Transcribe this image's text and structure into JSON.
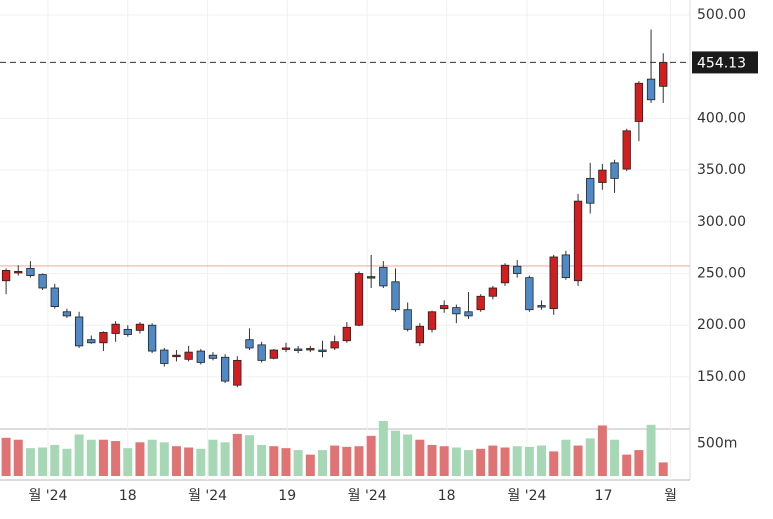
{
  "chart_data": {
    "type": "candlestick",
    "open": [
      243,
      251,
      255,
      249,
      236,
      213,
      208,
      186,
      183,
      192,
      196,
      195,
      200,
      176,
      170,
      167,
      175,
      171,
      169,
      142,
      186,
      181,
      168,
      177,
      177,
      177,
      176,
      178,
      185,
      200,
      246,
      256,
      242,
      215,
      183,
      196,
      216,
      217,
      213,
      215,
      228,
      241,
      257,
      246,
      219,
      216,
      268,
      243,
      342,
      338,
      357,
      351,
      397,
      438,
      431
    ],
    "high": [
      255,
      258,
      262,
      250,
      240,
      216,
      213,
      190,
      194,
      204,
      200,
      203,
      202,
      178,
      176,
      180,
      177,
      174,
      172,
      170,
      197,
      184,
      177,
      183,
      180,
      180,
      185,
      190,
      203,
      252,
      268,
      262,
      255,
      222,
      202,
      214,
      224,
      220,
      232,
      230,
      238,
      260,
      263,
      248,
      224,
      268,
      272,
      327,
      357,
      356,
      360,
      390,
      436,
      486,
      463
    ],
    "low": [
      230,
      248,
      246,
      234,
      216,
      207,
      178,
      182,
      175,
      184,
      189,
      192,
      173,
      160,
      165,
      165,
      162,
      166,
      144,
      140,
      176,
      164,
      167,
      174,
      173,
      174,
      169,
      176,
      183,
      199,
      236,
      236,
      213,
      194,
      180,
      193,
      212,
      202,
      206,
      213,
      225,
      238,
      246,
      213,
      215,
      210,
      244,
      238,
      308,
      331,
      328,
      349,
      378,
      415,
      415
    ],
    "close": [
      253,
      252,
      248,
      236,
      218,
      209,
      180,
      183,
      193,
      201,
      191,
      201,
      175,
      163,
      171,
      174,
      164,
      168,
      146,
      166,
      178,
      166,
      176,
      178,
      176,
      177.5,
      175,
      184,
      198,
      250,
      247,
      238,
      215,
      196,
      199,
      213,
      219,
      211,
      209,
      228,
      236,
      258,
      250,
      215,
      218,
      266,
      246,
      320,
      318,
      350,
      342,
      388,
      434,
      418,
      454.13
    ],
    "volume": [
      590,
      560,
      430,
      440,
      480,
      420,
      640,
      560,
      560,
      540,
      430,
      520,
      560,
      520,
      460,
      440,
      420,
      560,
      520,
      650,
      630,
      480,
      460,
      430,
      400,
      330,
      400,
      470,
      450,
      460,
      620,
      850,
      700,
      640,
      560,
      480,
      460,
      440,
      400,
      420,
      470,
      440,
      460,
      450,
      470,
      380,
      560,
      470,
      580,
      780,
      560,
      330,
      400,
      790,
      210
    ],
    "up_color": "#d11f1f",
    "down_color": "#4f8ac6",
    "volume_up_color": "#e07474",
    "volume_down_color": "#a6d8b6",
    "ylim": [
      100.6,
      514.5
    ],
    "yticks": [
      {
        "value": 150,
        "label": "150.00"
      },
      {
        "value": 200,
        "label": "200.00"
      },
      {
        "value": 250,
        "label": "250.00"
      },
      {
        "value": 300,
        "label": "300.00"
      },
      {
        "value": 350,
        "label": "350.00"
      },
      {
        "value": 400,
        "label": "400.00"
      },
      {
        "value": 500,
        "label": "500.00"
      }
    ],
    "vlim": [
      0,
      710
    ],
    "vticks": [
      {
        "value": 500,
        "label": "500m"
      }
    ],
    "xlim": [
      -0.5,
      56.2
    ],
    "xticks": [
      {
        "value": 3.44,
        "label": "월 '24"
      },
      {
        "value": 10,
        "label": "18"
      },
      {
        "value": 16.56,
        "label": "월 '24"
      },
      {
        "value": 23.1,
        "label": "19"
      },
      {
        "value": 29.67,
        "label": "월 '24"
      },
      {
        "value": 36.2,
        "label": "18"
      },
      {
        "value": 42.8,
        "label": "월 '24"
      },
      {
        "value": 49.1,
        "label": "17"
      },
      {
        "value": 54.6,
        "label": "월"
      }
    ],
    "last_price": 454.13,
    "reference_line": 257.3,
    "grid": true
  }
}
